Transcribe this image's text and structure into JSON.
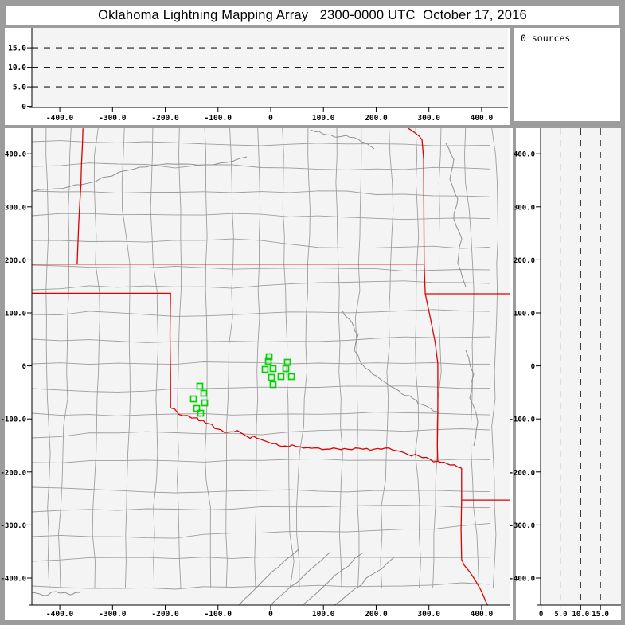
{
  "title": "Oklahoma Lightning Mapping Array   2300-0000 UTC  October 17, 2016",
  "sources_panel": {
    "text": "0 sources"
  },
  "colors": {
    "frame_gray": "#9c9c9c",
    "plot_bg": "#f4f4f4",
    "panel_bg": "#ffffff",
    "county_line": "#9e9e9e",
    "river_line": "#909090",
    "state_border": "#e00000",
    "station_green": "#00d400",
    "axis": "#000000",
    "guide_dash": "#1a1a1a"
  },
  "chart_data": [
    {
      "id": "altitude_vs_ew",
      "type": "line",
      "role": "altitude (km) vs east-west distance (km); empty because 0 lightning sources",
      "xlim": [
        -453,
        450
      ],
      "ylim": [
        0,
        20.1
      ],
      "x_ticks": [
        [
          -400,
          "-400.0"
        ],
        [
          -300,
          "-300.0"
        ],
        [
          -200,
          "-200.0"
        ],
        [
          -100,
          "-100.0"
        ],
        [
          0,
          "0"
        ],
        [
          100,
          "100.0"
        ],
        [
          200,
          "200.0"
        ],
        [
          300,
          "300.0"
        ],
        [
          400,
          "400.0"
        ]
      ],
      "y_ticks": [
        [
          0,
          "0"
        ],
        [
          5,
          "5.0"
        ],
        [
          10,
          "10.0"
        ],
        [
          15,
          "15.0"
        ]
      ],
      "guides": [
        5,
        10,
        15
      ],
      "grid": "dashed horizontal guide lines",
      "series": []
    },
    {
      "id": "plan_view_map",
      "type": "scatter",
      "role": "plan view map, km east-west vs km north-south; green squares are LMA stations, red lines state borders, gray lines county borders",
      "xlim": [
        -453,
        453
      ],
      "ylim": [
        -451,
        448
      ],
      "x_ticks": [
        [
          -400,
          "-400.0"
        ],
        [
          -300,
          "-300.0"
        ],
        [
          -200,
          "-200.0"
        ],
        [
          -100,
          "-100.0"
        ],
        [
          0,
          "0"
        ],
        [
          100,
          "100.0"
        ],
        [
          200,
          "200.0"
        ],
        [
          300,
          "300.0"
        ],
        [
          400,
          "400.0"
        ]
      ],
      "y_ticks": [
        [
          400,
          "400.0"
        ],
        [
          300,
          "300.0"
        ],
        [
          200,
          "200.0"
        ],
        [
          100,
          "100.0"
        ],
        [
          0,
          "0"
        ],
        [
          -100,
          "-100.0"
        ],
        [
          -200,
          "-200.0"
        ],
        [
          -300,
          "-300.0"
        ],
        [
          -400,
          "-400.0"
        ]
      ],
      "stations_km": [
        [
          -3.0,
          17.4
        ],
        [
          -4.5,
          8.4
        ],
        [
          31.7,
          6.9
        ],
        [
          -10.6,
          -6.6
        ],
        [
          4.5,
          -5.1
        ],
        [
          28.7,
          -5.1
        ],
        [
          1.5,
          -21.6
        ],
        [
          19.6,
          -20.1
        ],
        [
          39.3,
          -20.1
        ],
        [
          4.5,
          -35.1
        ],
        [
          -134.4,
          -38.1
        ],
        [
          -126.8,
          -51.6
        ],
        [
          -146.5,
          -62.2
        ],
        [
          -125.3,
          -69.7
        ],
        [
          -140.4,
          -80.2
        ],
        [
          -132.9,
          -89.2
        ]
      ],
      "state_borders_km": [
        [
          [
            -356,
            448
          ],
          [
            -357,
            420
          ],
          [
            -359,
            375
          ],
          [
            -360,
            340
          ],
          [
            -362,
            307
          ],
          [
            -364,
            270
          ],
          [
            -365,
            247
          ],
          [
            -367,
            192
          ]
        ],
        [
          [
            -453,
            192
          ],
          [
            291,
            192
          ]
        ],
        [
          [
            -453,
            137
          ],
          [
            -189,
            137
          ]
        ],
        [
          [
            -190,
            137
          ],
          [
            -191,
            60
          ],
          [
            -190,
            -20
          ],
          [
            -190,
            -79
          ]
        ],
        [
          [
            261,
            448
          ],
          [
            272,
            441
          ],
          [
            282,
            433
          ],
          [
            287,
            426
          ],
          [
            290,
            390
          ],
          [
            291,
            193
          ]
        ],
        [
          [
            291,
            193
          ],
          [
            293,
            136
          ]
        ],
        [
          [
            293,
            136
          ],
          [
            453,
            136
          ]
        ],
        [
          [
            293,
            136
          ],
          [
            303,
            89
          ],
          [
            312,
            44
          ],
          [
            317,
            4
          ],
          [
            317,
            -91
          ],
          [
            316,
            -151
          ],
          [
            317,
            -181
          ]
        ],
        [
          [
            -190,
            -79
          ],
          [
            -166,
            -94
          ],
          [
            -142,
            -98
          ],
          [
            -133,
            -103
          ],
          [
            -118,
            -109
          ],
          [
            -100,
            -119
          ],
          [
            -82,
            -125
          ],
          [
            -63,
            -122
          ],
          [
            -45,
            -133
          ],
          [
            -27,
            -136
          ],
          [
            -9,
            -142
          ],
          [
            9,
            -146
          ],
          [
            27,
            -151
          ],
          [
            48,
            -152
          ],
          [
            70,
            -154
          ],
          [
            91,
            -155
          ],
          [
            112,
            -157
          ],
          [
            133,
            -158
          ],
          [
            154,
            -158
          ],
          [
            175,
            -157
          ],
          [
            196,
            -157
          ],
          [
            217,
            -155
          ],
          [
            239,
            -160
          ],
          [
            260,
            -167
          ],
          [
            281,
            -170
          ],
          [
            302,
            -176
          ],
          [
            323,
            -182
          ],
          [
            341,
            -187
          ],
          [
            362,
            -193
          ]
        ],
        [
          [
            362,
            -193
          ],
          [
            362,
            -253
          ],
          [
            361,
            -308
          ],
          [
            362,
            -365
          ]
        ],
        [
          [
            362,
            -253
          ],
          [
            453,
            -253
          ]
        ],
        [
          [
            362,
            -365
          ],
          [
            367,
            -376
          ],
          [
            377,
            -388
          ],
          [
            386,
            -401
          ],
          [
            396,
            -418
          ],
          [
            402,
            -430
          ],
          [
            409,
            -447
          ],
          [
            412,
            -452
          ]
        ]
      ]
    },
    {
      "id": "altitude_vs_ns",
      "type": "line",
      "role": "altitude (km) vs north-south distance (km); empty because 0 lightning sources",
      "xlim": [
        0,
        20.3
      ],
      "ylim": [
        -451,
        448
      ],
      "x_ticks": [
        [
          0,
          "0"
        ],
        [
          5,
          "5.0"
        ],
        [
          10,
          "10.0"
        ],
        [
          15,
          "15.0"
        ]
      ],
      "y_ticks": [
        [
          400,
          "400.0"
        ],
        [
          300,
          "300.0"
        ],
        [
          200,
          "200.0"
        ],
        [
          100,
          "100.0"
        ],
        [
          0,
          "0"
        ],
        [
          -100,
          "-100.0"
        ],
        [
          -200,
          "-200.0"
        ],
        [
          -300,
          "-300.0"
        ],
        [
          -400,
          "-400.0"
        ]
      ],
      "guides": [
        5,
        10,
        15
      ],
      "grid": "dashed vertical guide lines",
      "series": []
    }
  ]
}
